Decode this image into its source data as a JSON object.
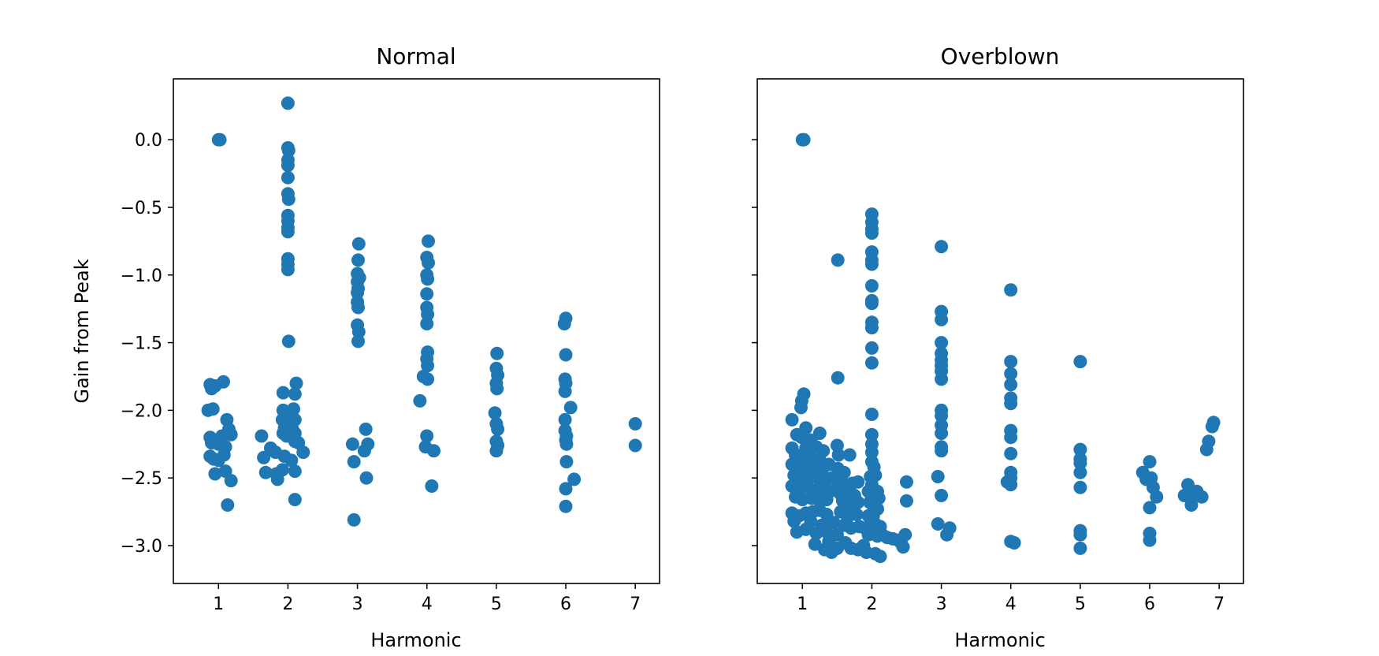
{
  "chart_data": [
    {
      "type": "scatter",
      "title": "Normal",
      "xlabel": "Harmonic",
      "ylabel": "Gain from Peak",
      "xlim": [
        0.35,
        7.35
      ],
      "ylim": [
        -3.28,
        0.45
      ],
      "xticks": [
        1,
        2,
        3,
        4,
        5,
        6,
        7
      ],
      "xtick_labels": [
        "1",
        "2",
        "3",
        "4",
        "5",
        "6",
        "7"
      ],
      "yticks": [
        0.0,
        -0.5,
        -1.0,
        -1.5,
        -2.0,
        -2.5,
        -3.0
      ],
      "ytick_labels": [
        "0.0",
        "−0.5",
        "−1.0",
        "−1.5",
        "−2.0",
        "−2.5",
        "−3.0"
      ],
      "color": "#1f77b4",
      "points": [
        [
          1.0,
          0.0
        ],
        [
          1.02,
          0.0
        ],
        [
          0.88,
          -1.81
        ],
        [
          0.9,
          -1.84
        ],
        [
          0.95,
          -1.82
        ],
        [
          1.07,
          -1.79
        ],
        [
          0.85,
          -2.0
        ],
        [
          0.92,
          -1.99
        ],
        [
          1.12,
          -2.07
        ],
        [
          1.15,
          -2.14
        ],
        [
          1.18,
          -2.18
        ],
        [
          0.88,
          -2.2
        ],
        [
          0.9,
          -2.24
        ],
        [
          0.95,
          -2.22
        ],
        [
          1.0,
          -2.25
        ],
        [
          1.05,
          -2.19
        ],
        [
          1.1,
          -2.27
        ],
        [
          0.88,
          -2.34
        ],
        [
          0.93,
          -2.36
        ],
        [
          1.0,
          -2.37
        ],
        [
          1.08,
          -2.33
        ],
        [
          0.95,
          -2.47
        ],
        [
          1.1,
          -2.45
        ],
        [
          1.18,
          -2.52
        ],
        [
          1.13,
          -2.7
        ],
        [
          2.0,
          0.27
        ],
        [
          2.0,
          -0.06
        ],
        [
          2.01,
          -0.08
        ],
        [
          2.0,
          -0.15
        ],
        [
          2.0,
          -0.19
        ],
        [
          2.0,
          -0.28
        ],
        [
          2.0,
          -0.4
        ],
        [
          2.01,
          -0.44
        ],
        [
          2.0,
          -0.56
        ],
        [
          2.0,
          -0.6
        ],
        [
          2.0,
          -0.65
        ],
        [
          2.0,
          -0.68
        ],
        [
          2.0,
          -0.88
        ],
        [
          2.0,
          -0.92
        ],
        [
          2.0,
          -0.96
        ],
        [
          2.01,
          -1.49
        ],
        [
          2.12,
          -1.8
        ],
        [
          1.93,
          -1.87
        ],
        [
          2.1,
          -1.88
        ],
        [
          1.93,
          -2.0
        ],
        [
          1.98,
          -2.03
        ],
        [
          2.05,
          -2.01
        ],
        [
          2.08,
          -1.99
        ],
        [
          1.92,
          -2.07
        ],
        [
          2.02,
          -2.07
        ],
        [
          2.1,
          -2.07
        ],
        [
          1.95,
          -2.13
        ],
        [
          2.06,
          -2.13
        ],
        [
          1.93,
          -2.17
        ],
        [
          2.1,
          -2.17
        ],
        [
          1.98,
          -2.19
        ],
        [
          2.1,
          -2.23
        ],
        [
          1.62,
          -2.19
        ],
        [
          1.75,
          -2.28
        ],
        [
          1.65,
          -2.35
        ],
        [
          2.15,
          -2.24
        ],
        [
          1.82,
          -2.31
        ],
        [
          2.22,
          -2.31
        ],
        [
          1.95,
          -2.34
        ],
        [
          2.05,
          -2.37
        ],
        [
          1.68,
          -2.46
        ],
        [
          1.83,
          -2.47
        ],
        [
          1.92,
          -2.44
        ],
        [
          2.1,
          -2.45
        ],
        [
          1.85,
          -2.51
        ],
        [
          2.1,
          -2.66
        ],
        [
          3.02,
          -0.77
        ],
        [
          3.01,
          -0.89
        ],
        [
          3.0,
          -0.99
        ],
        [
          3.03,
          -1.02
        ],
        [
          3.0,
          -1.05
        ],
        [
          3.01,
          -1.1
        ],
        [
          3.0,
          -1.13
        ],
        [
          3.0,
          -1.2
        ],
        [
          3.01,
          -1.24
        ],
        [
          3.0,
          -1.37
        ],
        [
          3.02,
          -1.42
        ],
        [
          3.01,
          -1.49
        ],
        [
          3.12,
          -2.14
        ],
        [
          2.93,
          -2.25
        ],
        [
          3.15,
          -2.25
        ],
        [
          3.1,
          -2.3
        ],
        [
          2.95,
          -2.38
        ],
        [
          3.13,
          -2.5
        ],
        [
          2.95,
          -2.81
        ],
        [
          4.02,
          -0.75
        ],
        [
          4.0,
          -0.87
        ],
        [
          4.02,
          -0.91
        ],
        [
          4.0,
          -1.0
        ],
        [
          4.01,
          -1.03
        ],
        [
          4.0,
          -1.14
        ],
        [
          4.0,
          -1.24
        ],
        [
          4.01,
          -1.29
        ],
        [
          4.0,
          -1.36
        ],
        [
          4.01,
          -1.57
        ],
        [
          4.0,
          -1.62
        ],
        [
          4.01,
          -1.67
        ],
        [
          3.95,
          -1.75
        ],
        [
          4.01,
          -1.77
        ],
        [
          3.9,
          -1.93
        ],
        [
          4.0,
          -2.19
        ],
        [
          3.98,
          -2.27
        ],
        [
          4.1,
          -2.3
        ],
        [
          4.07,
          -2.56
        ],
        [
          5.01,
          -1.58
        ],
        [
          5.0,
          -1.69
        ],
        [
          5.02,
          -1.74
        ],
        [
          5.0,
          -1.8
        ],
        [
          5.01,
          -1.84
        ],
        [
          4.98,
          -2.02
        ],
        [
          5.0,
          -2.1
        ],
        [
          5.02,
          -2.14
        ],
        [
          5.0,
          -2.23
        ],
        [
          5.02,
          -2.26
        ],
        [
          5.0,
          -2.3
        ],
        [
          6.0,
          -1.32
        ],
        [
          5.98,
          -1.36
        ],
        [
          6.0,
          -1.59
        ],
        [
          5.99,
          -1.77
        ],
        [
          6.0,
          -1.8
        ],
        [
          5.99,
          -1.86
        ],
        [
          6.07,
          -1.98
        ],
        [
          5.99,
          -2.07
        ],
        [
          5.99,
          -2.15
        ],
        [
          6.01,
          -2.19
        ],
        [
          6.0,
          -2.22
        ],
        [
          6.01,
          -2.25
        ],
        [
          6.01,
          -2.38
        ],
        [
          6.12,
          -2.51
        ],
        [
          6.0,
          -2.58
        ],
        [
          6.0,
          -2.71
        ],
        [
          7.0,
          -2.1
        ],
        [
          7.0,
          -2.26
        ]
      ]
    },
    {
      "type": "scatter",
      "title": "Overblown",
      "xlabel": "Harmonic",
      "ylabel": "",
      "xlim": [
        0.35,
        7.35
      ],
      "ylim": [
        -3.28,
        0.45
      ],
      "xticks": [
        1,
        2,
        3,
        4,
        5,
        6,
        7
      ],
      "xtick_labels": [
        "1",
        "2",
        "3",
        "4",
        "5",
        "6",
        "7"
      ],
      "yticks": [
        0.0,
        -0.5,
        -1.0,
        -1.5,
        -2.0,
        -2.5,
        -3.0
      ],
      "ytick_labels": [
        "",
        "",
        "",
        "",
        "",
        "",
        ""
      ],
      "color": "#1f77b4",
      "points": [
        [
          1.0,
          0.0
        ],
        [
          1.02,
          0.0
        ],
        [
          1.51,
          -0.89
        ],
        [
          1.51,
          -1.76
        ],
        [
          1.02,
          -1.88
        ],
        [
          0.99,
          -1.93
        ],
        [
          0.98,
          -1.98
        ],
        [
          0.85,
          -2.07
        ],
        [
          1.05,
          -2.13
        ],
        [
          1.25,
          -2.17
        ],
        [
          0.92,
          -2.18
        ],
        [
          0.99,
          -2.2
        ],
        [
          1.12,
          -2.22
        ],
        [
          0.85,
          -2.28
        ],
        [
          1.05,
          -2.28
        ],
        [
          1.2,
          -2.27
        ],
        [
          1.3,
          -2.3
        ],
        [
          0.9,
          -2.33
        ],
        [
          0.98,
          -2.35
        ],
        [
          1.08,
          -2.33
        ],
        [
          1.15,
          -2.36
        ],
        [
          1.25,
          -2.37
        ],
        [
          0.85,
          -2.4
        ],
        [
          0.95,
          -2.42
        ],
        [
          1.05,
          -2.41
        ],
        [
          1.18,
          -2.43
        ],
        [
          1.28,
          -2.44
        ],
        [
          1.38,
          -2.4
        ],
        [
          0.88,
          -2.48
        ],
        [
          1.0,
          -2.5
        ],
        [
          1.12,
          -2.49
        ],
        [
          1.22,
          -2.5
        ],
        [
          1.33,
          -2.52
        ],
        [
          1.42,
          -2.5
        ],
        [
          0.85,
          -2.56
        ],
        [
          0.95,
          -2.58
        ],
        [
          1.08,
          -2.57
        ],
        [
          1.18,
          -2.59
        ],
        [
          1.3,
          -2.58
        ],
        [
          1.4,
          -2.6
        ],
        [
          0.9,
          -2.64
        ],
        [
          1.0,
          -2.66
        ],
        [
          1.13,
          -2.65
        ],
        [
          1.25,
          -2.67
        ],
        [
          1.35,
          -2.66
        ],
        [
          0.85,
          -2.76
        ],
        [
          0.95,
          -2.78
        ],
        [
          1.05,
          -2.76
        ],
        [
          1.15,
          -2.75
        ],
        [
          1.25,
          -2.74
        ],
        [
          1.35,
          -2.77
        ],
        [
          0.88,
          -2.82
        ],
        [
          1.12,
          -2.82
        ],
        [
          1.28,
          -2.85
        ],
        [
          1.45,
          -2.83
        ],
        [
          0.92,
          -2.9
        ],
        [
          1.05,
          -2.88
        ],
        [
          1.2,
          -2.91
        ],
        [
          1.35,
          -2.9
        ],
        [
          1.5,
          -2.92
        ],
        [
          1.18,
          -2.99
        ],
        [
          1.38,
          -2.97
        ],
        [
          1.32,
          -3.03
        ],
        [
          1.42,
          -3.05
        ],
        [
          1.5,
          -3.02
        ],
        [
          1.5,
          -2.26
        ],
        [
          1.52,
          -2.33
        ],
        [
          1.51,
          -2.43
        ],
        [
          1.5,
          -2.48
        ],
        [
          1.6,
          -2.46
        ],
        [
          1.52,
          -2.55
        ],
        [
          1.62,
          -2.55
        ],
        [
          1.72,
          -2.54
        ],
        [
          1.8,
          -2.53
        ],
        [
          1.55,
          -2.62
        ],
        [
          1.65,
          -2.6
        ],
        [
          1.75,
          -2.63
        ],
        [
          1.58,
          -2.67
        ],
        [
          1.7,
          -2.7
        ],
        [
          1.8,
          -2.68
        ],
        [
          1.55,
          -2.75
        ],
        [
          1.65,
          -2.79
        ],
        [
          1.78,
          -2.77
        ],
        [
          1.6,
          -2.85
        ],
        [
          1.7,
          -2.87
        ],
        [
          1.82,
          -2.86
        ],
        [
          1.92,
          -2.88
        ],
        [
          1.62,
          -2.98
        ],
        [
          1.7,
          -3.02
        ],
        [
          1.8,
          -3.03
        ],
        [
          1.88,
          -3.0
        ],
        [
          1.92,
          -3.05
        ],
        [
          1.68,
          -2.33
        ],
        [
          2.0,
          -0.55
        ],
        [
          2.0,
          -0.61
        ],
        [
          2.0,
          -0.66
        ],
        [
          2.0,
          -0.69
        ],
        [
          2.0,
          -0.83
        ],
        [
          2.0,
          -0.89
        ],
        [
          2.0,
          -0.92
        ],
        [
          2.0,
          -1.08
        ],
        [
          2.0,
          -1.19
        ],
        [
          2.0,
          -1.21
        ],
        [
          2.0,
          -1.35
        ],
        [
          2.0,
          -1.39
        ],
        [
          2.0,
          -1.54
        ],
        [
          2.0,
          -1.65
        ],
        [
          2.0,
          -2.03
        ],
        [
          2.0,
          -2.18
        ],
        [
          2.0,
          -2.25
        ],
        [
          2.0,
          -2.31
        ],
        [
          2.0,
          -2.38
        ],
        [
          2.03,
          -2.42
        ],
        [
          1.98,
          -2.49
        ],
        [
          2.05,
          -2.48
        ],
        [
          2.0,
          -2.55
        ],
        [
          1.95,
          -2.6
        ],
        [
          2.03,
          -2.62
        ],
        [
          2.08,
          -2.6
        ],
        [
          2.1,
          -2.65
        ],
        [
          1.97,
          -2.68
        ],
        [
          2.03,
          -2.72
        ],
        [
          2.08,
          -2.73
        ],
        [
          1.95,
          -2.78
        ],
        [
          2.02,
          -2.78
        ],
        [
          1.97,
          -2.85
        ],
        [
          2.05,
          -2.84
        ],
        [
          2.12,
          -2.86
        ],
        [
          1.95,
          -2.92
        ],
        [
          2.08,
          -2.93
        ],
        [
          2.15,
          -2.92
        ],
        [
          2.22,
          -2.94
        ],
        [
          2.3,
          -2.95
        ],
        [
          2.38,
          -2.96
        ],
        [
          2.42,
          -2.98
        ],
        [
          2.48,
          -2.92
        ],
        [
          2.45,
          -3.01
        ],
        [
          2.05,
          -3.06
        ],
        [
          2.12,
          -3.08
        ],
        [
          2.5,
          -2.53
        ],
        [
          2.5,
          -2.67
        ],
        [
          3.0,
          -0.79
        ],
        [
          3.0,
          -1.27
        ],
        [
          3.0,
          -1.33
        ],
        [
          3.0,
          -1.5
        ],
        [
          3.0,
          -1.58
        ],
        [
          3.0,
          -1.63
        ],
        [
          3.0,
          -1.67
        ],
        [
          3.0,
          -1.71
        ],
        [
          3.0,
          -1.77
        ],
        [
          3.0,
          -2.0
        ],
        [
          3.0,
          -2.04
        ],
        [
          3.0,
          -2.11
        ],
        [
          3.0,
          -2.17
        ],
        [
          3.0,
          -2.27
        ],
        [
          3.0,
          -2.3
        ],
        [
          2.95,
          -2.49
        ],
        [
          3.0,
          -2.63
        ],
        [
          2.95,
          -2.84
        ],
        [
          3.12,
          -2.87
        ],
        [
          3.08,
          -2.92
        ],
        [
          4.0,
          -1.11
        ],
        [
          4.0,
          -1.64
        ],
        [
          4.0,
          -1.73
        ],
        [
          4.0,
          -1.81
        ],
        [
          4.0,
          -1.91
        ],
        [
          4.0,
          -1.95
        ],
        [
          4.0,
          -2.15
        ],
        [
          4.0,
          -2.2
        ],
        [
          4.0,
          -2.32
        ],
        [
          4.0,
          -2.46
        ],
        [
          4.0,
          -2.5
        ],
        [
          3.95,
          -2.53
        ],
        [
          4.0,
          -2.55
        ],
        [
          4.0,
          -2.97
        ],
        [
          4.05,
          -2.98
        ],
        [
          5.0,
          -1.64
        ],
        [
          5.0,
          -2.29
        ],
        [
          5.0,
          -2.36
        ],
        [
          5.0,
          -2.39
        ],
        [
          5.0,
          -2.46
        ],
        [
          5.0,
          -2.57
        ],
        [
          5.0,
          -2.89
        ],
        [
          5.0,
          -2.92
        ],
        [
          5.0,
          -3.02
        ],
        [
          6.0,
          -2.38
        ],
        [
          5.9,
          -2.46
        ],
        [
          5.95,
          -2.51
        ],
        [
          6.02,
          -2.5
        ],
        [
          6.05,
          -2.57
        ],
        [
          6.1,
          -2.64
        ],
        [
          6.0,
          -2.72
        ],
        [
          6.0,
          -2.91
        ],
        [
          6.0,
          -2.96
        ],
        [
          6.55,
          -2.55
        ],
        [
          6.68,
          -2.6
        ],
        [
          6.5,
          -2.63
        ],
        [
          6.6,
          -2.63
        ],
        [
          6.75,
          -2.64
        ],
        [
          6.6,
          -2.7
        ],
        [
          6.92,
          -2.09
        ],
        [
          6.9,
          -2.12
        ],
        [
          6.85,
          -2.23
        ],
        [
          6.82,
          -2.29
        ]
      ]
    }
  ]
}
